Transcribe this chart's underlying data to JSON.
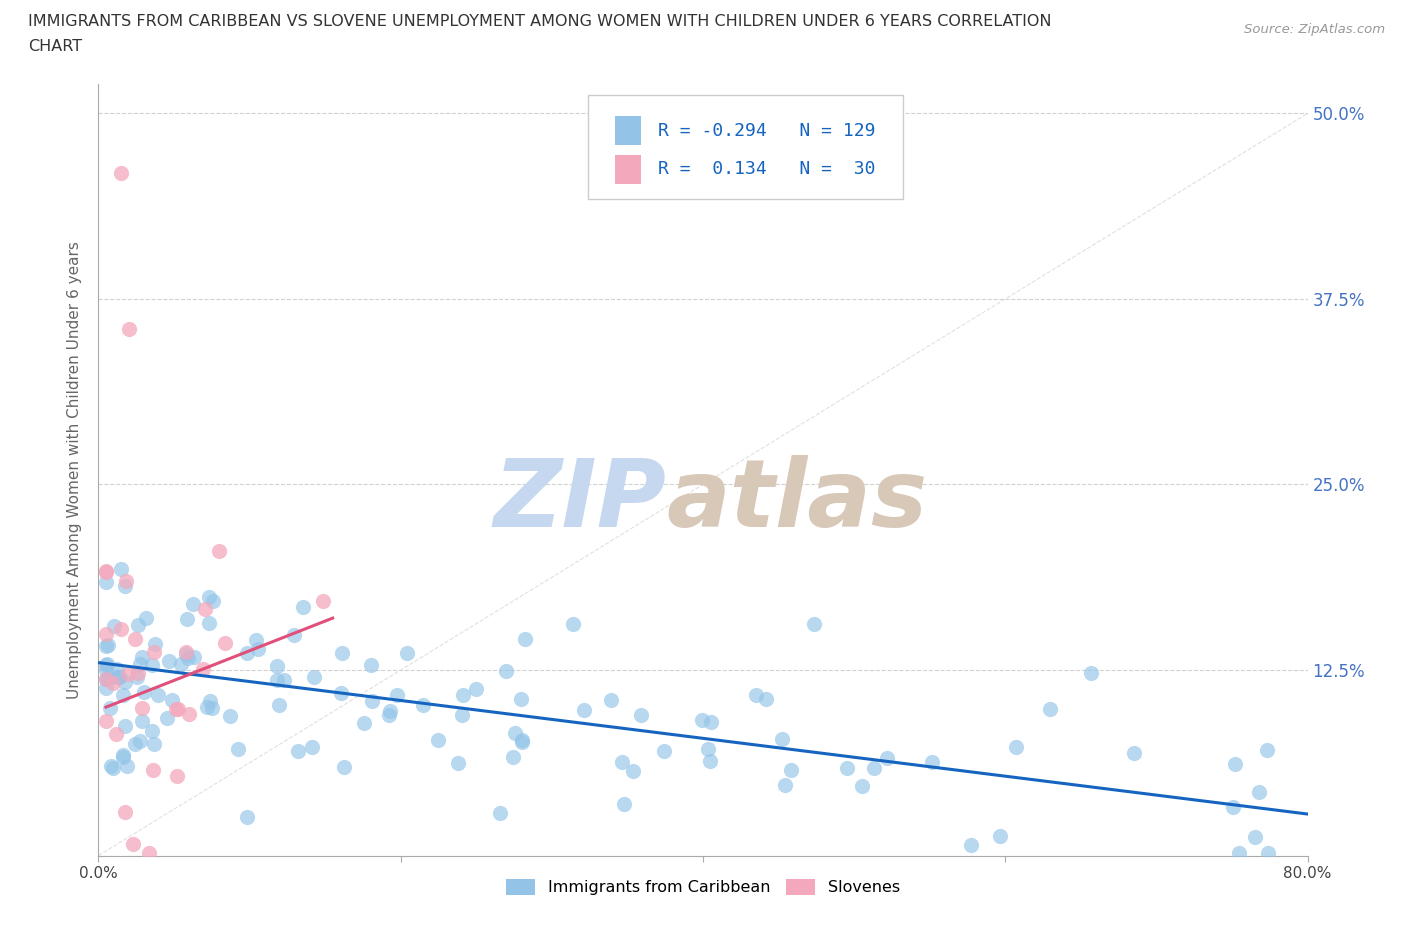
{
  "title_line1": "IMMIGRANTS FROM CARIBBEAN VS SLOVENE UNEMPLOYMENT AMONG WOMEN WITH CHILDREN UNDER 6 YEARS CORRELATION",
  "title_line2": "CHART",
  "source": "Source: ZipAtlas.com",
  "ylabel": "Unemployment Among Women with Children Under 6 years",
  "xlim": [
    0.0,
    0.8
  ],
  "ylim": [
    0.0,
    0.52
  ],
  "xticks": [
    0.0,
    0.2,
    0.4,
    0.6,
    0.8
  ],
  "xtick_labels": [
    "0.0%",
    "",
    "",
    "",
    "80.0%"
  ],
  "yticks": [
    0.0,
    0.125,
    0.25,
    0.375,
    0.5
  ],
  "ytick_labels_right": [
    "",
    "12.5%",
    "25.0%",
    "37.5%",
    "50.0%"
  ],
  "watermark_zip": "ZIP",
  "watermark_atlas": "atlas",
  "blue_color": "#93c4e8",
  "pink_color": "#f4a8bc",
  "blue_line_color": "#1565c0",
  "pink_line_color": "#e0507a",
  "diag_color": "#dddddd",
  "R_blue": -0.294,
  "N_blue": 129,
  "R_pink": 0.134,
  "N_pink": 30,
  "blue_trend_x": [
    0.0,
    0.8
  ],
  "blue_trend_y": [
    0.13,
    0.028
  ],
  "pink_trend_x": [
    0.005,
    0.155
  ],
  "pink_trend_y": [
    0.1,
    0.16
  ],
  "background_color": "#ffffff",
  "grid_color": "#cccccc",
  "legend_box_color": "#f0f4f8"
}
